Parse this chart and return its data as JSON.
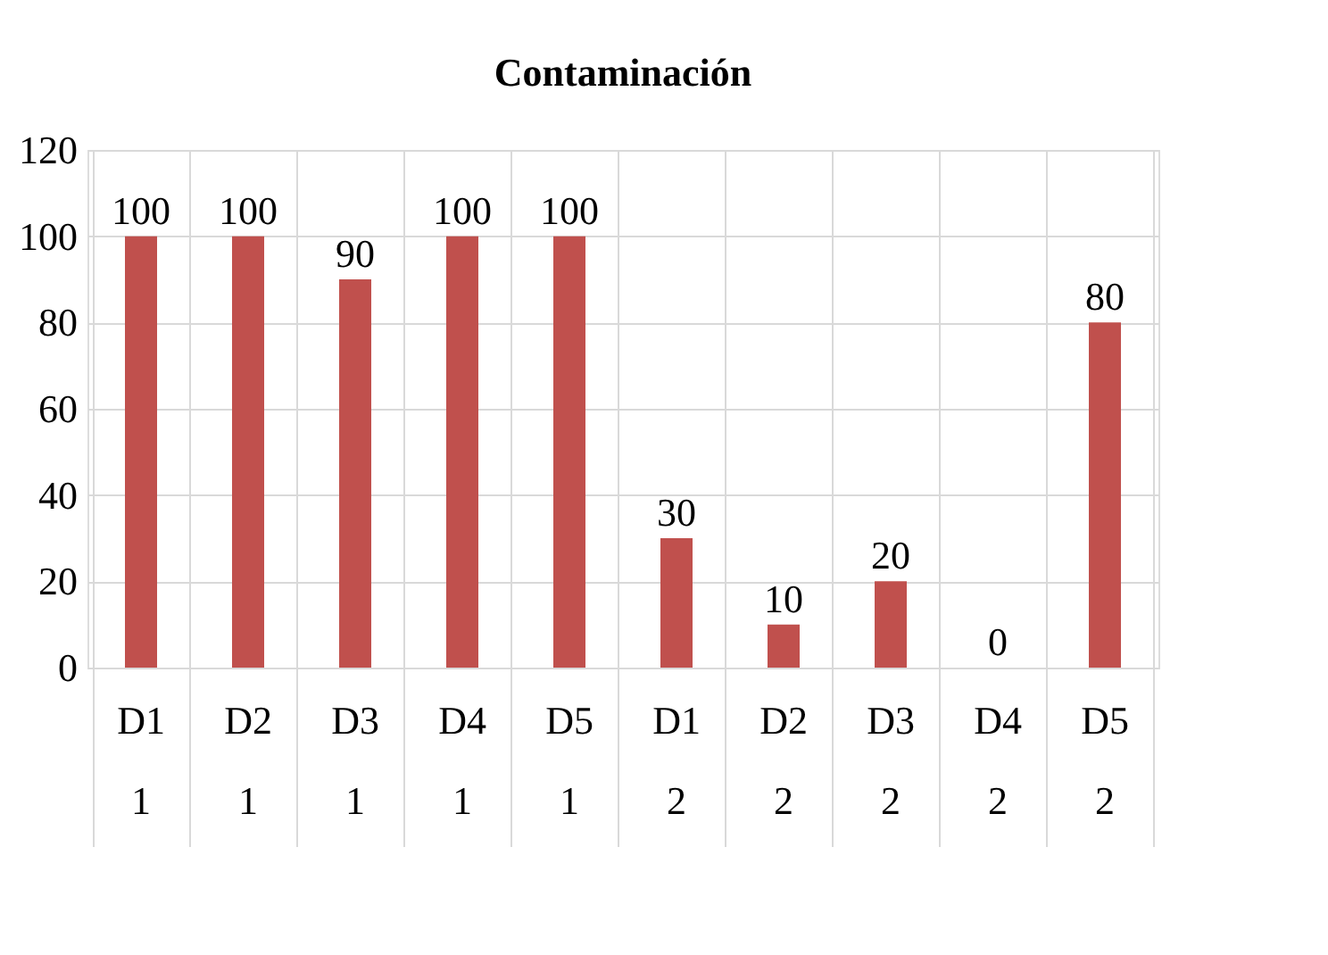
{
  "chart_data": {
    "type": "bar",
    "title": "Contaminación",
    "categories": [
      "D1 1",
      "D2 1",
      "D3 1",
      "D4 1",
      "D5 1",
      "D1 2",
      "D2 2",
      "D3 2",
      "D4 2",
      "D5 2"
    ],
    "values": [
      100,
      100,
      90,
      100,
      100,
      30,
      10,
      20,
      0,
      80
    ],
    "color": "#c0504d",
    "ylim": [
      0,
      120
    ],
    "yticks": [
      0,
      20,
      40,
      60,
      80,
      100,
      120
    ],
    "grid": true,
    "data_labels": true
  }
}
